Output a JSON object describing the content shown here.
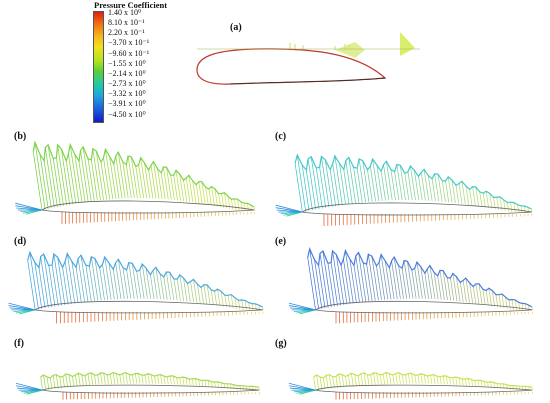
{
  "colorbar": {
    "title": "Pressure Coefficient",
    "labels": [
      "1.40 x 10⁰",
      "8.10 x 10⁻¹",
      "2.20 x 10⁻¹",
      "−3.70 x 10⁻¹",
      "−9.60 x 10⁻¹",
      "−1.55 x 10⁰",
      "−2.14 x 10⁰",
      "−2.73 x 10⁰",
      "−3.32 x 10⁰",
      "−3.91 x 10⁰",
      "−4.50 x 10⁰"
    ],
    "colors": [
      "#e0200f",
      "#f26a12",
      "#f2b71c",
      "#f0e21e",
      "#b6e31f",
      "#5bcf3a",
      "#22c9a8",
      "#1ea6e0",
      "#1b5fe0",
      "#1818c8"
    ]
  },
  "panels": [
    {
      "id": "a",
      "label": "(a)"
    },
    {
      "id": "b",
      "label": "(b)",
      "suction_peak": 0.9,
      "suction_color": "#6fcf3a"
    },
    {
      "id": "c",
      "label": "(c)",
      "suction_peak": 0.75,
      "suction_color": "#33c2c8"
    },
    {
      "id": "d",
      "label": "(d)",
      "suction_peak": 0.8,
      "suction_color": "#3a9fe0"
    },
    {
      "id": "e",
      "label": "(e)",
      "suction_peak": 0.85,
      "suction_color": "#3a6fe0"
    },
    {
      "id": "f",
      "label": "(f)",
      "suction_peak": 0.3,
      "suction_color": "#9ad64a"
    },
    {
      "id": "g",
      "label": "(g)",
      "suction_peak": 0.3,
      "suction_color": "#bde04a"
    }
  ]
}
